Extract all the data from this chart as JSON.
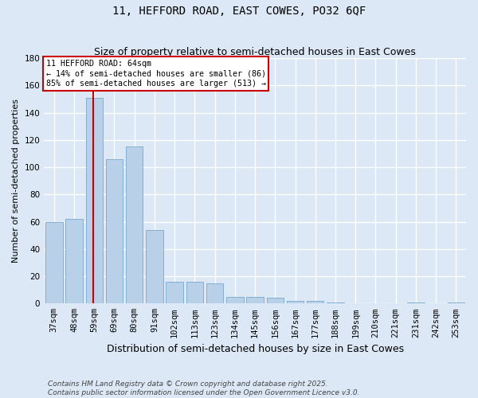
{
  "title": "11, HEFFORD ROAD, EAST COWES, PO32 6QF",
  "subtitle": "Size of property relative to semi-detached houses in East Cowes",
  "xlabel": "Distribution of semi-detached houses by size in East Cowes",
  "ylabel": "Number of semi-detached properties",
  "categories": [
    "37sqm",
    "48sqm",
    "59sqm",
    "69sqm",
    "80sqm",
    "91sqm",
    "102sqm",
    "113sqm",
    "123sqm",
    "134sqm",
    "145sqm",
    "156sqm",
    "167sqm",
    "177sqm",
    "188sqm",
    "199sqm",
    "210sqm",
    "221sqm",
    "231sqm",
    "242sqm",
    "253sqm"
  ],
  "values": [
    60,
    62,
    151,
    106,
    115,
    54,
    16,
    16,
    15,
    5,
    5,
    4,
    2,
    2,
    1,
    0,
    0,
    0,
    1,
    0,
    1
  ],
  "bar_color": "#b8d0e8",
  "bar_edge_color": "#7aa8cc",
  "property_line_label": "11 HEFFORD ROAD: 64sqm",
  "pct_smaller": 14,
  "pct_smaller_count": 86,
  "pct_larger": 85,
  "pct_larger_count": 513,
  "annotation_box_color": "#ffffff",
  "annotation_box_edge_color": "#cc0000",
  "line_color": "#cc0000",
  "ylim": [
    0,
    180
  ],
  "yticks": [
    0,
    20,
    40,
    60,
    80,
    100,
    120,
    140,
    160,
    180
  ],
  "background_color": "#dce8f5",
  "grid_color": "#ffffff",
  "footer": "Contains HM Land Registry data © Crown copyright and database right 2025.\nContains public sector information licensed under the Open Government Licence v3.0.",
  "title_fontsize": 10,
  "subtitle_fontsize": 9,
  "xlabel_fontsize": 9,
  "ylabel_fontsize": 8,
  "tick_fontsize": 7.5,
  "footer_fontsize": 6.5
}
